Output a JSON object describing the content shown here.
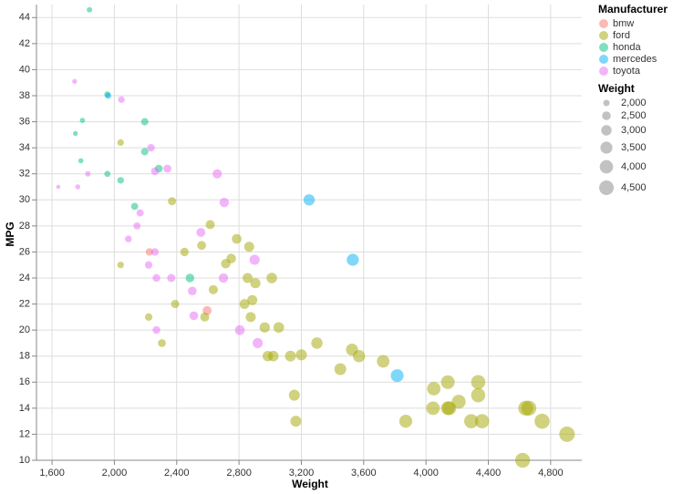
{
  "chart_data": {
    "type": "scatter",
    "x_label": "Weight",
    "y_label": "MPG",
    "xlim": [
      1500,
      5000
    ],
    "ylim": [
      10,
      45
    ],
    "xticks": [
      {
        "value": 1600,
        "label": "1,600"
      },
      {
        "value": 2000,
        "label": "2,000"
      },
      {
        "value": 2400,
        "label": "2,400"
      },
      {
        "value": 2800,
        "label": "2,800"
      },
      {
        "value": 3200,
        "label": "3,200"
      },
      {
        "value": 3600,
        "label": "3,600"
      },
      {
        "value": 4000,
        "label": "4,000"
      },
      {
        "value": 4400,
        "label": "4,400"
      },
      {
        "value": 4800,
        "label": "4,800"
      }
    ],
    "yticks": [
      10,
      12,
      14,
      16,
      18,
      20,
      22,
      24,
      26,
      28,
      30,
      32,
      34,
      36,
      38,
      40,
      42,
      44
    ],
    "grid": true,
    "legend_title": "Manufacturer",
    "size_legend": {
      "title": "Weight",
      "values": [
        {
          "value": 2000,
          "label": "2,000"
        },
        {
          "value": 2500,
          "label": "2,500"
        },
        {
          "value": 3000,
          "label": "3,000"
        },
        {
          "value": 3500,
          "label": "3,500"
        },
        {
          "value": 4000,
          "label": "4,000"
        },
        {
          "value": 4500,
          "label": "4,500"
        }
      ]
    },
    "series": [
      {
        "name": "bmw",
        "color": "#f8766d",
        "x": [
          2225,
          2595
        ],
        "y": [
          26.0,
          21.5
        ]
      },
      {
        "name": "ford",
        "color": "#a3a500",
        "x": [
          2040,
          2370,
          2040,
          2615,
          2450,
          2560,
          2785,
          2865,
          2750,
          2715,
          2635,
          2390,
          2220,
          2580,
          2855,
          3010,
          2905,
          2885,
          2835,
          2875,
          2965,
          3055,
          2305,
          2985,
          3020,
          3130,
          3200,
          3300,
          3525,
          3570,
          3450,
          3725,
          3155,
          3165,
          3870,
          4050,
          4140,
          4045,
          4140,
          4150,
          4210,
          4335,
          4335,
          4290,
          4360,
          4640,
          4660,
          4745,
          4905,
          4620
        ],
        "y": [
          34.4,
          29.9,
          25.0,
          28.1,
          26.0,
          26.5,
          27.0,
          26.4,
          25.5,
          25.1,
          23.1,
          22.0,
          21.0,
          21.0,
          24.0,
          24.0,
          23.6,
          22.3,
          22.0,
          21.0,
          20.2,
          20.2,
          19.0,
          18.0,
          18.0,
          18.0,
          18.1,
          19.0,
          18.5,
          18.0,
          17.0,
          17.6,
          15.0,
          13.0,
          13.0,
          15.5,
          16.0,
          14.0,
          14.0,
          14.0,
          14.5,
          16.0,
          15.0,
          13.0,
          13.0,
          14.0,
          14.0,
          13.0,
          12.0,
          10.0
        ]
      },
      {
        "name": "honda",
        "color": "#00bf7d",
        "x": [
          1840,
          1955,
          1795,
          1750,
          2195,
          2195,
          2285,
          1785,
          1955,
          2040,
          2130,
          2485
        ],
        "y": [
          44.6,
          38.1,
          36.1,
          35.1,
          36.0,
          33.7,
          32.4,
          33.0,
          32.0,
          31.5,
          29.5,
          24.0
        ]
      },
      {
        "name": "mercedes",
        "color": "#00b0f6",
        "x": [
          1960,
          3250,
          3530,
          3815
        ],
        "y": [
          38.0,
          30.0,
          25.4,
          16.5
        ]
      },
      {
        "name": "toyota",
        "color": "#e76bf3",
        "x": [
          1745,
          2045,
          1640,
          1765,
          1830,
          2235,
          2260,
          2340,
          2660,
          2705,
          2165,
          2145,
          2090,
          2260,
          2555,
          2220,
          2270,
          2365,
          2500,
          2700,
          2900,
          2510,
          2270,
          2805,
          2920
        ],
        "y": [
          39.1,
          37.7,
          31.0,
          31.0,
          32.0,
          34.0,
          32.2,
          32.4,
          32.0,
          29.8,
          29.0,
          28.0,
          27.0,
          26.0,
          27.5,
          25.0,
          24.0,
          24.0,
          23.0,
          24.0,
          25.4,
          21.1,
          20.0,
          20.0,
          19.0
        ]
      }
    ]
  }
}
